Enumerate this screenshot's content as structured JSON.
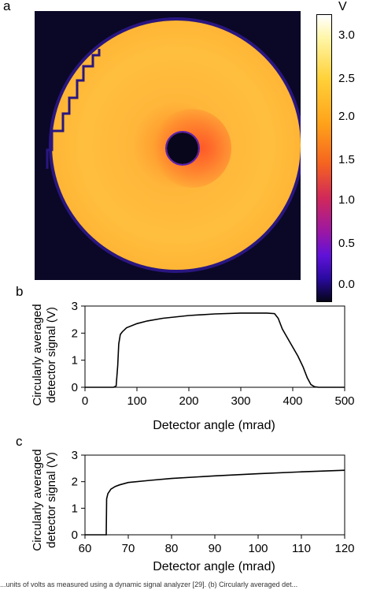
{
  "panels": {
    "a": "a",
    "b": "b",
    "c": "c"
  },
  "colorbar": {
    "unit": "V",
    "ticks": [
      "3.0",
      "2.5",
      "2.0",
      "1.5",
      "1.0",
      "0.5",
      "0.0"
    ],
    "range": [
      0,
      3.25
    ],
    "colormap": "inferno-like (black-purple-red-orange-yellow-white)"
  },
  "caption_fragment": "...units of volts as measured using a dynamic signal analyzer [29]. (b) Circularly averaged det...",
  "chart_data": [
    {
      "panel": "b",
      "type": "line",
      "xlabel": "Detector angle (mrad)",
      "ylabel_lines": [
        "Circularly averaged",
        "detector signal (V)"
      ],
      "xlim": [
        0,
        500
      ],
      "ylim": [
        0,
        3
      ],
      "xticks": [
        "0",
        "100",
        "200",
        "300",
        "400",
        "500"
      ],
      "yticks": [
        "0",
        "1",
        "2",
        "3"
      ],
      "series": [
        {
          "x": [
            0,
            55,
            60,
            63,
            65,
            68,
            72,
            80,
            100,
            120,
            150,
            200,
            250,
            300,
            350,
            365,
            372,
            380,
            395,
            410,
            420,
            428,
            435,
            442,
            450,
            500
          ],
          "y": [
            0,
            0,
            0.05,
            0.8,
            1.6,
            1.95,
            2.05,
            2.2,
            2.35,
            2.45,
            2.55,
            2.65,
            2.71,
            2.74,
            2.74,
            2.72,
            2.55,
            2.15,
            1.65,
            1.15,
            0.75,
            0.35,
            0.1,
            0.02,
            0,
            0
          ]
        }
      ]
    },
    {
      "panel": "c",
      "type": "line",
      "xlabel": "Detector angle (mrad)",
      "ylabel_lines": [
        "Circularly averaged",
        "detector signal (V)"
      ],
      "xlim": [
        60,
        120
      ],
      "ylim": [
        0,
        3
      ],
      "xticks": [
        "60",
        "70",
        "80",
        "90",
        "100",
        "110",
        "120"
      ],
      "yticks": [
        "0",
        "1",
        "2",
        "3"
      ],
      "series": [
        {
          "x": [
            60,
            64.9,
            65,
            65.3,
            66,
            67,
            68,
            70,
            75,
            80,
            90,
            100,
            110,
            120
          ],
          "y": [
            0,
            0,
            1.35,
            1.55,
            1.72,
            1.82,
            1.88,
            1.97,
            2.05,
            2.12,
            2.22,
            2.3,
            2.37,
            2.43
          ]
        }
      ]
    }
  ]
}
